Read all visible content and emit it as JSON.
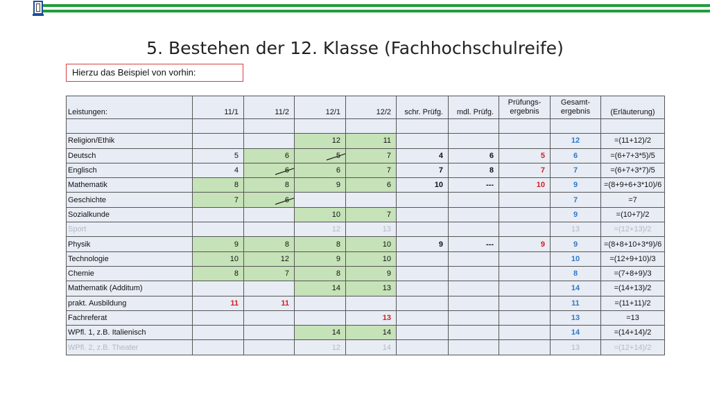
{
  "title": "5. Bestehen der 12. Klasse (Fachhochschulreife)",
  "note": "Hierzu das Beispiel von vorhin:",
  "header": {
    "leistungen": "Leistungen:",
    "col_11_1": "11/1",
    "col_11_2": "11/2",
    "col_12_1": "12/1",
    "col_12_2": "12/2",
    "schr": "schr. Prüfg.",
    "mdl": "mdl. Prüfg.",
    "pruef_1": "Prüfungs-",
    "pruef_2": "ergebnis",
    "gesamt_1": "Gesamt-",
    "gesamt_2": "ergebnis",
    "erl": "(Erläuterung)"
  },
  "rows": [
    {
      "subject": "Religion/Ethik",
      "s11_1": "",
      "s11_2": "",
      "s12_1": "12",
      "s12_2": "11",
      "schr": "",
      "mdl": "",
      "pe": "",
      "ge": "12",
      "erl": "=(11+12)/2"
    },
    {
      "subject": "Deutsch",
      "s11_1": "5",
      "s11_2": "6",
      "s12_1": "5",
      "s12_2": "7",
      "schr": "4",
      "mdl": "6",
      "pe": "5",
      "ge": "6",
      "erl": "=(6+7+3*5)/5"
    },
    {
      "subject": "Englisch",
      "s11_1": "4",
      "s11_2": "6",
      "s12_1": "6",
      "s12_2": "7",
      "schr": "7",
      "mdl": "8",
      "pe": "7",
      "ge": "7",
      "erl": "=(6+7+3*7)/5"
    },
    {
      "subject": "Mathematik",
      "s11_1": "8",
      "s11_2": "8",
      "s12_1": "9",
      "s12_2": "6",
      "schr": "10",
      "mdl": "---",
      "pe": "10",
      "ge": "9",
      "erl": "=(8+9+6+3*10)/6"
    },
    {
      "subject": "Geschichte",
      "s11_1": "7",
      "s11_2": "6",
      "s12_1": "",
      "s12_2": "",
      "schr": "",
      "mdl": "",
      "pe": "",
      "ge": "7",
      "erl": "=7"
    },
    {
      "subject": "Sozialkunde",
      "s11_1": "",
      "s11_2": "",
      "s12_1": "10",
      "s12_2": "7",
      "schr": "",
      "mdl": "",
      "pe": "",
      "ge": "9",
      "erl": "=(10+7)/2"
    },
    {
      "subject": "Sport",
      "s11_1": "",
      "s11_2": "",
      "s12_1": "12",
      "s12_2": "13",
      "schr": "",
      "mdl": "",
      "pe": "",
      "ge": "13",
      "erl": "=(12+13)/2"
    },
    {
      "subject": "Physik",
      "s11_1": "9",
      "s11_2": "8",
      "s12_1": "8",
      "s12_2": "10",
      "schr": "9",
      "mdl": "---",
      "pe": "9",
      "ge": "9",
      "erl": "=(8+8+10+3*9)/6"
    },
    {
      "subject": "Technologie",
      "s11_1": "10",
      "s11_2": "12",
      "s12_1": "9",
      "s12_2": "10",
      "schr": "",
      "mdl": "",
      "pe": "",
      "ge": "10",
      "erl": "=(12+9+10)/3"
    },
    {
      "subject": "Chemie",
      "s11_1": "8",
      "s11_2": "7",
      "s12_1": "8",
      "s12_2": "9",
      "schr": "",
      "mdl": "",
      "pe": "",
      "ge": "8",
      "erl": "=(7+8+9)/3"
    },
    {
      "subject": "Mathematik (Additum)",
      "s11_1": "",
      "s11_2": "",
      "s12_1": "14",
      "s12_2": "13",
      "schr": "",
      "mdl": "",
      "pe": "",
      "ge": "14",
      "erl": "=(14+13)/2"
    },
    {
      "subject": "prakt. Ausbildung",
      "s11_1": "11",
      "s11_2": "11",
      "s12_1": "",
      "s12_2": "",
      "schr": "",
      "mdl": "",
      "pe": "",
      "ge": "11",
      "erl": "=(11+11)/2"
    },
    {
      "subject": "Fachreferat",
      "s11_1": "",
      "s11_2": "",
      "s12_1": "",
      "s12_2": "13",
      "schr": "",
      "mdl": "",
      "pe": "",
      "ge": "13",
      "erl": "=13"
    },
    {
      "subject": "WPfl. 1, z.B. Italienisch",
      "s11_1": "",
      "s11_2": "",
      "s12_1": "14",
      "s12_2": "14",
      "schr": "",
      "mdl": "",
      "pe": "",
      "ge": "14",
      "erl": "=(14+14)/2"
    },
    {
      "subject": "WPfl. 2, z.B. Theater",
      "s11_1": "",
      "s11_2": "",
      "s12_1": "12",
      "s12_2": "14",
      "schr": "",
      "mdl": "",
      "pe": "",
      "ge": "13",
      "erl": "=(12+14)/2"
    }
  ],
  "colors": {
    "accent_green": "#1e9e3a",
    "cell_green": "#c6e2b8",
    "cell_bg": "#e8ecf4",
    "red": "#d21e1e",
    "blue": "#2e78c8",
    "grey": "#b4b8c0"
  },
  "icons": {
    "logo": "school-logo-icon"
  }
}
